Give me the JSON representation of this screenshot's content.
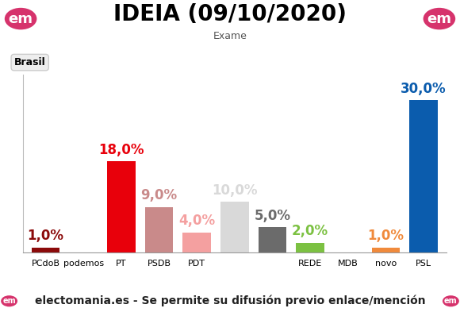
{
  "chart_data": {
    "type": "bar",
    "title": "IDEIA (09/10/2020)",
    "subtitle": "Exame",
    "region": "Brasil",
    "brand": "em",
    "source": "electomania.es - Se permite su difusión previo enlace/mención",
    "categories": [
      "PCdoB",
      "podemos",
      "PT",
      "PSDB",
      "PDT",
      null,
      null,
      "REDE",
      "MDB",
      "novo",
      "PSL"
    ],
    "values": [
      1.0,
      null,
      18.0,
      9.0,
      4.0,
      10.0,
      5.0,
      2.0,
      null,
      1.0,
      30.0
    ],
    "value_labels": [
      "1,0%",
      null,
      "18,0%",
      "9,0%",
      "4,0%",
      "10,0%",
      "5,0%",
      "2,0%",
      null,
      "1,0%",
      "30,0%"
    ],
    "colors": [
      "#8b0a0a",
      null,
      "#e8000b",
      "#c98a8a",
      "#f4a0a0",
      "#d9d9d9",
      "#6b6b6b",
      "#7cc142",
      null,
      "#f08a3c",
      "#0b5cad"
    ],
    "ylim": [
      0,
      35
    ],
    "yticks": [],
    "data_labels": true,
    "tick_labels": "x",
    "grid": false
  }
}
